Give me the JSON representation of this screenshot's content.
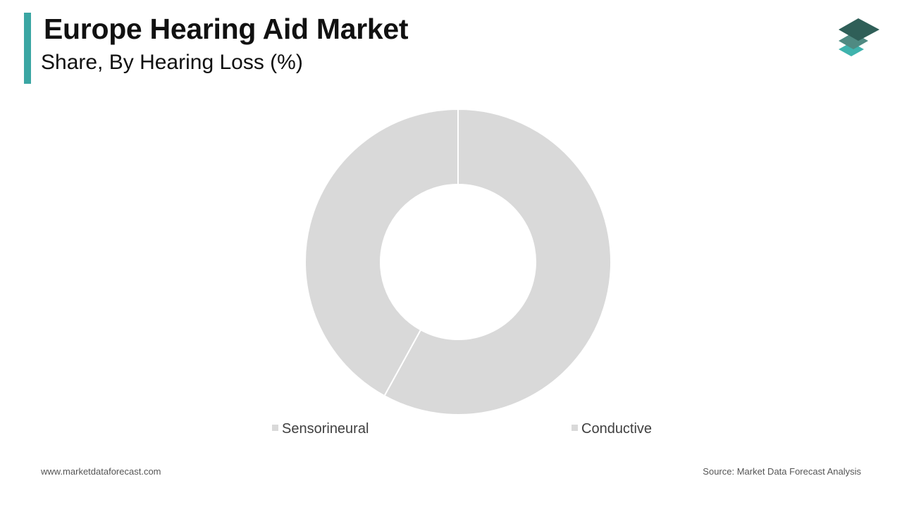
{
  "header": {
    "title": "Europe Hearing Aid Market",
    "subtitle": "Share, By Hearing Loss (%)"
  },
  "colors": {
    "accent": "#3aa6a3",
    "slice": "#d9d9d9",
    "logo_top": "#2f5f58",
    "logo_mid": "#4f8a82",
    "logo_bottom": "#3fb3ad"
  },
  "logo": {
    "icon": "stacked-layers-icon"
  },
  "chart_data": {
    "type": "pie",
    "variant": "donut",
    "title": "Europe Hearing Aid Market",
    "subtitle": "Share, By Hearing Loss (%)",
    "categories": [
      "Sensorineural",
      "Conductive"
    ],
    "values": [
      58,
      42
    ],
    "legend_position": "bottom",
    "grid": false
  },
  "footer": {
    "website": "www.marketdataforecast.com",
    "source": "Source: Market Data Forecast Analysis"
  }
}
